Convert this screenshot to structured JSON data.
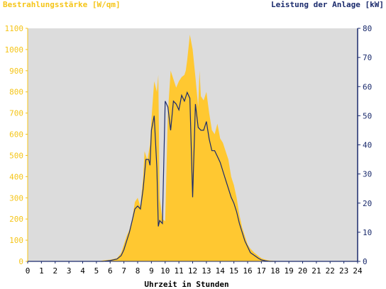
{
  "chart_data": {
    "type": "area",
    "title_left": "Bestrahlungsstärke [W/qm]",
    "title_right": "Leistung der Anlage [kW]",
    "xlabel": "Uhrzeit in Stunden",
    "xlim": [
      0,
      24
    ],
    "x_ticks": [
      "0",
      "1",
      "2",
      "3",
      "4",
      "5",
      "6",
      "7",
      "8",
      "9",
      "10",
      "11",
      "12",
      "13",
      "14",
      "15",
      "16",
      "17",
      "18",
      "19",
      "20",
      "21",
      "22",
      "23",
      "24"
    ],
    "y_left": {
      "lim": [
        0,
        1100
      ],
      "ticks": [
        "0",
        "100",
        "200",
        "300",
        "400",
        "500",
        "600",
        "700",
        "800",
        "900",
        "1000",
        "1100"
      ]
    },
    "y_right": {
      "lim": [
        0,
        80
      ],
      "ticks": [
        "0",
        "10",
        "20",
        "30",
        "40",
        "50",
        "60",
        "70",
        "80"
      ]
    },
    "grid": false,
    "colors": {
      "irradiance": "#ffc831",
      "power": "#1a2a6c",
      "plot_bg": "#dcdcdc",
      "left_axis": "#f5c518",
      "right_axis": "#1a2a6c"
    },
    "series": [
      {
        "name": "Bestrahlungsstärke [W/qm]",
        "axis": "left",
        "style": "area",
        "x": [
          0,
          5.2,
          5.5,
          6.0,
          6.5,
          6.8,
          7.0,
          7.2,
          7.4,
          7.6,
          7.8,
          8.0,
          8.2,
          8.4,
          8.5,
          8.7,
          8.9,
          9.0,
          9.2,
          9.4,
          9.5,
          9.6,
          9.8,
          10.0,
          10.2,
          10.4,
          10.6,
          10.8,
          11.0,
          11.2,
          11.4,
          11.5,
          11.6,
          11.8,
          12.0,
          12.2,
          12.4,
          12.5,
          12.6,
          12.8,
          13.0,
          13.2,
          13.4,
          13.6,
          13.8,
          14.0,
          14.2,
          14.4,
          14.6,
          14.8,
          15.0,
          15.2,
          15.4,
          15.6,
          15.8,
          16.0,
          16.2,
          16.5,
          16.8,
          17.0,
          17.3,
          17.6,
          18.0,
          18.5,
          20.0,
          24
        ],
        "values": [
          0,
          0,
          5,
          8,
          15,
          40,
          80,
          120,
          150,
          200,
          280,
          300,
          260,
          400,
          520,
          480,
          550,
          670,
          850,
          800,
          880,
          300,
          200,
          190,
          700,
          900,
          860,
          820,
          850,
          870,
          880,
          900,
          950,
          1070,
          1000,
          870,
          730,
          900,
          780,
          760,
          800,
          700,
          620,
          600,
          650,
          580,
          560,
          520,
          480,
          400,
          360,
          300,
          220,
          160,
          120,
          80,
          60,
          40,
          25,
          15,
          8,
          4,
          2,
          0,
          0,
          0
        ]
      },
      {
        "name": "Leistung der Anlage [kW]",
        "axis": "right",
        "style": "line",
        "x": [
          0,
          5.5,
          6.0,
          6.5,
          6.8,
          7.0,
          7.2,
          7.4,
          7.6,
          7.8,
          8.0,
          8.2,
          8.4,
          8.6,
          8.8,
          8.9,
          9.0,
          9.2,
          9.4,
          9.5,
          9.6,
          9.8,
          10.0,
          10.2,
          10.4,
          10.6,
          10.8,
          11.0,
          11.2,
          11.4,
          11.6,
          11.8,
          12.0,
          12.2,
          12.4,
          12.6,
          12.8,
          13.0,
          13.2,
          13.4,
          13.6,
          13.8,
          14.0,
          14.2,
          14.4,
          14.6,
          14.8,
          15.0,
          15.2,
          15.4,
          15.6,
          15.8,
          16.0,
          16.2,
          16.5,
          16.8,
          17.0,
          17.3,
          17.6,
          18.0,
          18.5,
          20.0,
          24
        ],
        "values": [
          0,
          0,
          0.3,
          0.8,
          2,
          4,
          7,
          10,
          14,
          18,
          19,
          18,
          25,
          35,
          35,
          33,
          45,
          50,
          32,
          12,
          14,
          13,
          55,
          53,
          45,
          55,
          54,
          52,
          57,
          55,
          58,
          56,
          22,
          54,
          46,
          45,
          45,
          48,
          42,
          38,
          38,
          36,
          34,
          31,
          28,
          25,
          22,
          20,
          17,
          13,
          10,
          7,
          5,
          3,
          2,
          1,
          0.5,
          0.2,
          0,
          0,
          0,
          0,
          0
        ]
      }
    ]
  }
}
